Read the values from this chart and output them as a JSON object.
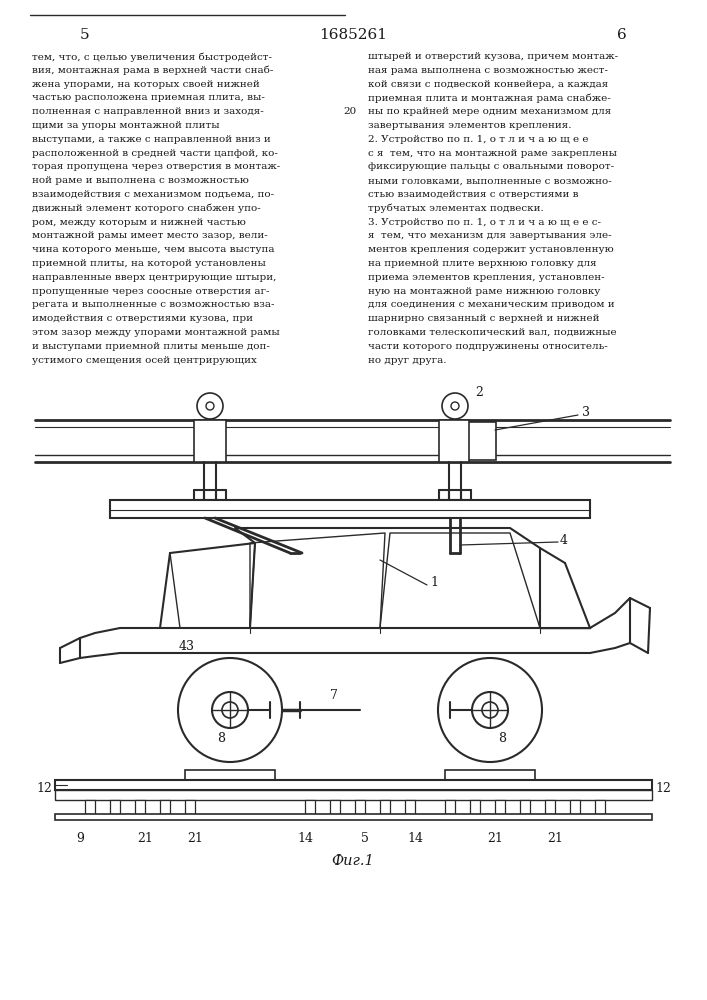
{
  "page_number_left": "5",
  "patent_number": "1685261",
  "page_number_right": "6",
  "background_color": "#ffffff",
  "text_color": "#1a1a1a",
  "line_color": "#2a2a2a",
  "left_column_text": [
    "тем, что, с целью увеличения быстродейст-",
    "вия, монтажная рама в верхней части снаб-",
    "жена упорами, на которых своей нижней",
    "частью расположена приемная плита, вы-",
    "полненная с направленной вниз и заходя-",
    "щими за упоры монтажной плиты",
    "выступами, а также с направленной вниз и",
    "расположенной в средней части цапфой, ко-",
    "торая пропущена через отверстия в монтаж-",
    "ной раме и выполнена с возможностью",
    "взаимодействия с механизмом подъема, по-",
    "движный элемент которого снабжен упо-",
    "ром, между которым и нижней частью",
    "монтажной рамы имеет место зазор, вели-",
    "чина которого меньше, чем высота выступа",
    "приемной плиты, на которой установлены",
    "направленные вверх центрирующие штыри,",
    "пропущенные через соосные отверстия аг-",
    "регата и выполненные с возможностью вза-",
    "имодействия с отверстиями кузова, при",
    "этом зазор между упорами монтажной рамы",
    "и выступами приемной плиты меньше доп-",
    "устимого смещения осей центрирующих"
  ],
  "right_column_text": [
    "штырей и отверстий кузова, причем монтаж-",
    "ная рама выполнена с возможностью жест-",
    "кой связи с подвеской конвейера, а каждая",
    "приемная плита и монтажная рама снабже-",
    "ны по крайней мере одним механизмом для",
    "завертывания элементов крепления.",
    "2. Устройство по п. 1, о т л и ч а ю щ е е",
    "с я  тем, что на монтажной раме закреплены",
    "фиксирующие пальцы с овальными поворот-",
    "ными головками, выполненные с возможно-",
    "стью взаимодействия с отверстиями в",
    "трубчатых элементах подвески.",
    "3. Устройство по п. 1, о т л и ч а ю щ е е с-",
    "я  тем, что механизм для завертывания эле-",
    "ментов крепления содержит установленную",
    "на приемной плите верхнюю головку для",
    "приема элементов крепления, установлен-",
    "ную на монтажной раме нижнюю головку",
    "для соединения с механическим приводом и",
    "шарнирно связанный с верхней и нижней",
    "головками телескопический вал, подвижные",
    "части которого подпружинены относитель-",
    "но друг друга."
  ],
  "figure_caption": "Фиг.1",
  "line_number_20": "20"
}
